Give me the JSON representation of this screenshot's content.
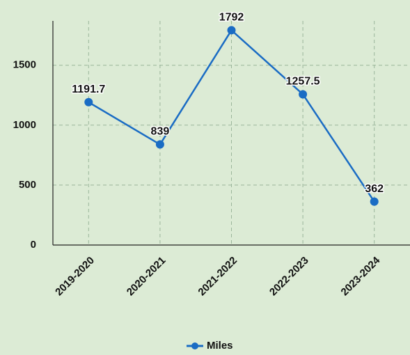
{
  "chart_data": {
    "type": "line",
    "categories": [
      "2019-2020",
      "2020-2021",
      "2021-2022",
      "2022-2023",
      "2023-2024"
    ],
    "series": [
      {
        "name": "Miles",
        "color": "#1a6cc4",
        "values": [
          1191.7,
          839,
          1792,
          1257.5,
          362
        ]
      }
    ],
    "ylim": [
      0,
      1870
    ],
    "yticks": [
      0,
      500,
      1000,
      1500
    ],
    "grid": true,
    "legend": "bottom"
  }
}
